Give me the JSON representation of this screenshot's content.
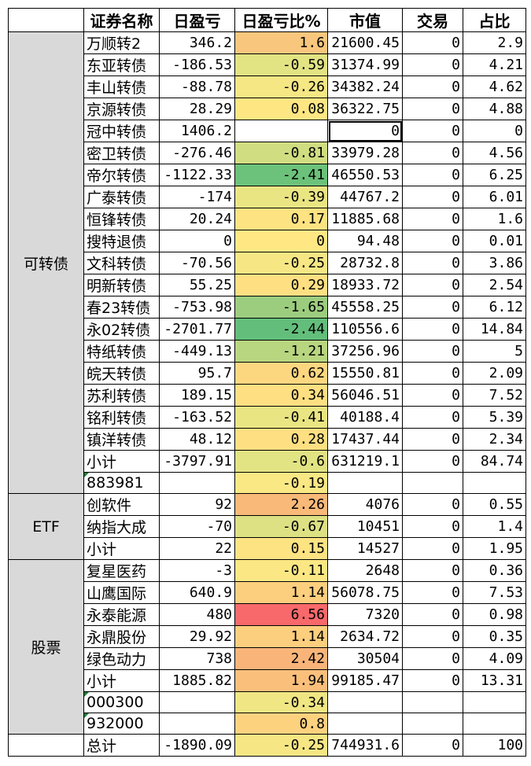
{
  "headers": [
    "",
    "证券名称",
    "日盈亏",
    "日盈亏比%",
    "市值",
    "交易",
    "占比"
  ],
  "groups": [
    {
      "label": "可转债",
      "rows": [
        {
          "name": "万顺转2",
          "pnl": "346.2",
          "pct": "1.6",
          "color": "#f8c77d",
          "mv": "21600.45",
          "trade": "0",
          "share": "2.9"
        },
        {
          "name": "东亚转债",
          "pnl": "-186.53",
          "pct": "-0.59",
          "color": "#e2e383",
          "mv": "31374.99",
          "trade": "0",
          "share": "4.21"
        },
        {
          "name": "丰山转债",
          "pnl": "-88.78",
          "pct": "-0.26",
          "color": "#f5e784",
          "mv": "34382.24",
          "trade": "0",
          "share": "4.62"
        },
        {
          "name": "京源转债",
          "pnl": "28.29",
          "pct": "0.08",
          "color": "#fee683",
          "mv": "36322.75",
          "trade": "0",
          "share": "4.88"
        },
        {
          "name": "冠中转债",
          "pnl": "1406.2",
          "pct": "",
          "color": "#ffffff",
          "mv": "0",
          "trade": "0",
          "share": "0",
          "mv_selected": true
        },
        {
          "name": "密卫转债",
          "pnl": "-276.46",
          "pct": "-0.81",
          "color": "#d1dd81",
          "mv": "33979.28",
          "trade": "0",
          "share": "4.56"
        },
        {
          "name": "帝尔转债",
          "pnl": "-1122.33",
          "pct": "-2.41",
          "color": "#6cc27a",
          "mv": "46550.53",
          "trade": "0",
          "share": "6.25"
        },
        {
          "name": "广泰转债",
          "pnl": "-174",
          "pct": "-0.39",
          "color": "#eae583",
          "mv": "44767.2",
          "trade": "0",
          "share": "6.01"
        },
        {
          "name": "恒锋转债",
          "pnl": "20.24",
          "pct": "0.17",
          "color": "#fee382",
          "mv": "11885.68",
          "trade": "0",
          "share": "1.6"
        },
        {
          "name": "搜特退债",
          "pnl": "0",
          "pct": "0",
          "color": "#ffe884",
          "mv": "94.48",
          "trade": "0",
          "share": "0.01"
        },
        {
          "name": "文科转债",
          "pnl": "-70.56",
          "pct": "-0.25",
          "color": "#f6e784",
          "mv": "28732.8",
          "trade": "0",
          "share": "3.86"
        },
        {
          "name": "明新转债",
          "pnl": "55.25",
          "pct": "0.29",
          "color": "#fee082",
          "mv": "18933.72",
          "trade": "0",
          "share": "2.54"
        },
        {
          "name": "春23转债",
          "pnl": "-753.98",
          "pct": "-1.65",
          "color": "#9ccd7e",
          "mv": "45558.25",
          "trade": "0",
          "share": "6.12"
        },
        {
          "name": "永02转债",
          "pnl": "-2701.77",
          "pct": "-2.44",
          "color": "#63be7b",
          "mv": "110556.6",
          "trade": "0",
          "share": "14.84"
        },
        {
          "name": "特纸转债",
          "pnl": "-449.13",
          "pct": "-1.21",
          "color": "#b8d580",
          "mv": "37256.96",
          "trade": "0",
          "share": "5"
        },
        {
          "name": "皖天转债",
          "pnl": "95.7",
          "pct": "0.62",
          "color": "#fdd780",
          "mv": "15550.81",
          "trade": "0",
          "share": "2.09"
        },
        {
          "name": "苏利转债",
          "pnl": "189.15",
          "pct": "0.34",
          "color": "#fedf82",
          "mv": "56046.51",
          "trade": "0",
          "share": "7.52"
        },
        {
          "name": "铭利转债",
          "pnl": "-163.52",
          "pct": "-0.41",
          "color": "#e9e583",
          "mv": "40188.4",
          "trade": "0",
          "share": "5.39"
        },
        {
          "name": "镇洋转债",
          "pnl": "48.12",
          "pct": "0.28",
          "color": "#fee082",
          "mv": "17437.44",
          "trade": "0",
          "share": "2.34"
        },
        {
          "name": "小计",
          "pnl": "-3797.91",
          "pct": "-0.6",
          "color": "#e2e383",
          "mv": "631219.1",
          "trade": "0",
          "share": "84.74"
        },
        {
          "name": "883981",
          "pnl": "",
          "pct": "-0.19",
          "color": "#f9e884",
          "mv": "",
          "trade": "",
          "share": "",
          "index": true
        }
      ]
    },
    {
      "label": "ETF",
      "rows": [
        {
          "name": "创软件",
          "pnl": "92",
          "pct": "2.26",
          "color": "#f9b979",
          "mv": "4076",
          "trade": "0",
          "share": "0.55"
        },
        {
          "name": "纳指大成",
          "pnl": "-70",
          "pct": "-0.67",
          "color": "#dde183",
          "mv": "10451",
          "trade": "0",
          "share": "1.4"
        },
        {
          "name": "小计",
          "pnl": "22",
          "pct": "0.15",
          "color": "#fee383",
          "mv": "14527",
          "trade": "0",
          "share": "1.95"
        }
      ]
    },
    {
      "label": "股票",
      "rows": [
        {
          "name": "复星医药",
          "pnl": "-3",
          "pct": "-0.11",
          "color": "#fbe884",
          "mv": "2648",
          "trade": "0",
          "share": "0.36"
        },
        {
          "name": "山鹰国际",
          "pnl": "640.9",
          "pct": "1.14",
          "color": "#fccf7e",
          "mv": "56078.75",
          "trade": "0",
          "share": "7.53"
        },
        {
          "name": "永泰能源",
          "pnl": "480",
          "pct": "6.56",
          "color": "#f8696b",
          "mv": "7320",
          "trade": "0",
          "share": "0.98"
        },
        {
          "name": "永鼎股份",
          "pnl": "29.92",
          "pct": "1.14",
          "color": "#fccf7e",
          "mv": "2634.72",
          "trade": "0",
          "share": "0.35"
        },
        {
          "name": "绿色动力",
          "pnl": "738",
          "pct": "2.42",
          "color": "#f9b579",
          "mv": "30504",
          "trade": "0",
          "share": "4.09"
        },
        {
          "name": "小计",
          "pnl": "1885.82",
          "pct": "1.94",
          "color": "#fac07b",
          "mv": "99185.47",
          "trade": "0",
          "share": "13.31"
        },
        {
          "name": "000300",
          "pnl": "",
          "pct": "-0.34",
          "color": "#f0e683",
          "mv": "",
          "trade": "",
          "share": "",
          "index": true
        },
        {
          "name": "932000",
          "pnl": "",
          "pct": "0.8",
          "color": "#fdd27f",
          "mv": "",
          "trade": "",
          "share": "",
          "index": true
        }
      ]
    },
    {
      "label": "",
      "rows": [
        {
          "name": "总计",
          "pnl": "-1890.09",
          "pct": "-0.25",
          "color": "#f6e784",
          "mv": "744931.6",
          "trade": "0",
          "share": "100"
        }
      ]
    }
  ]
}
